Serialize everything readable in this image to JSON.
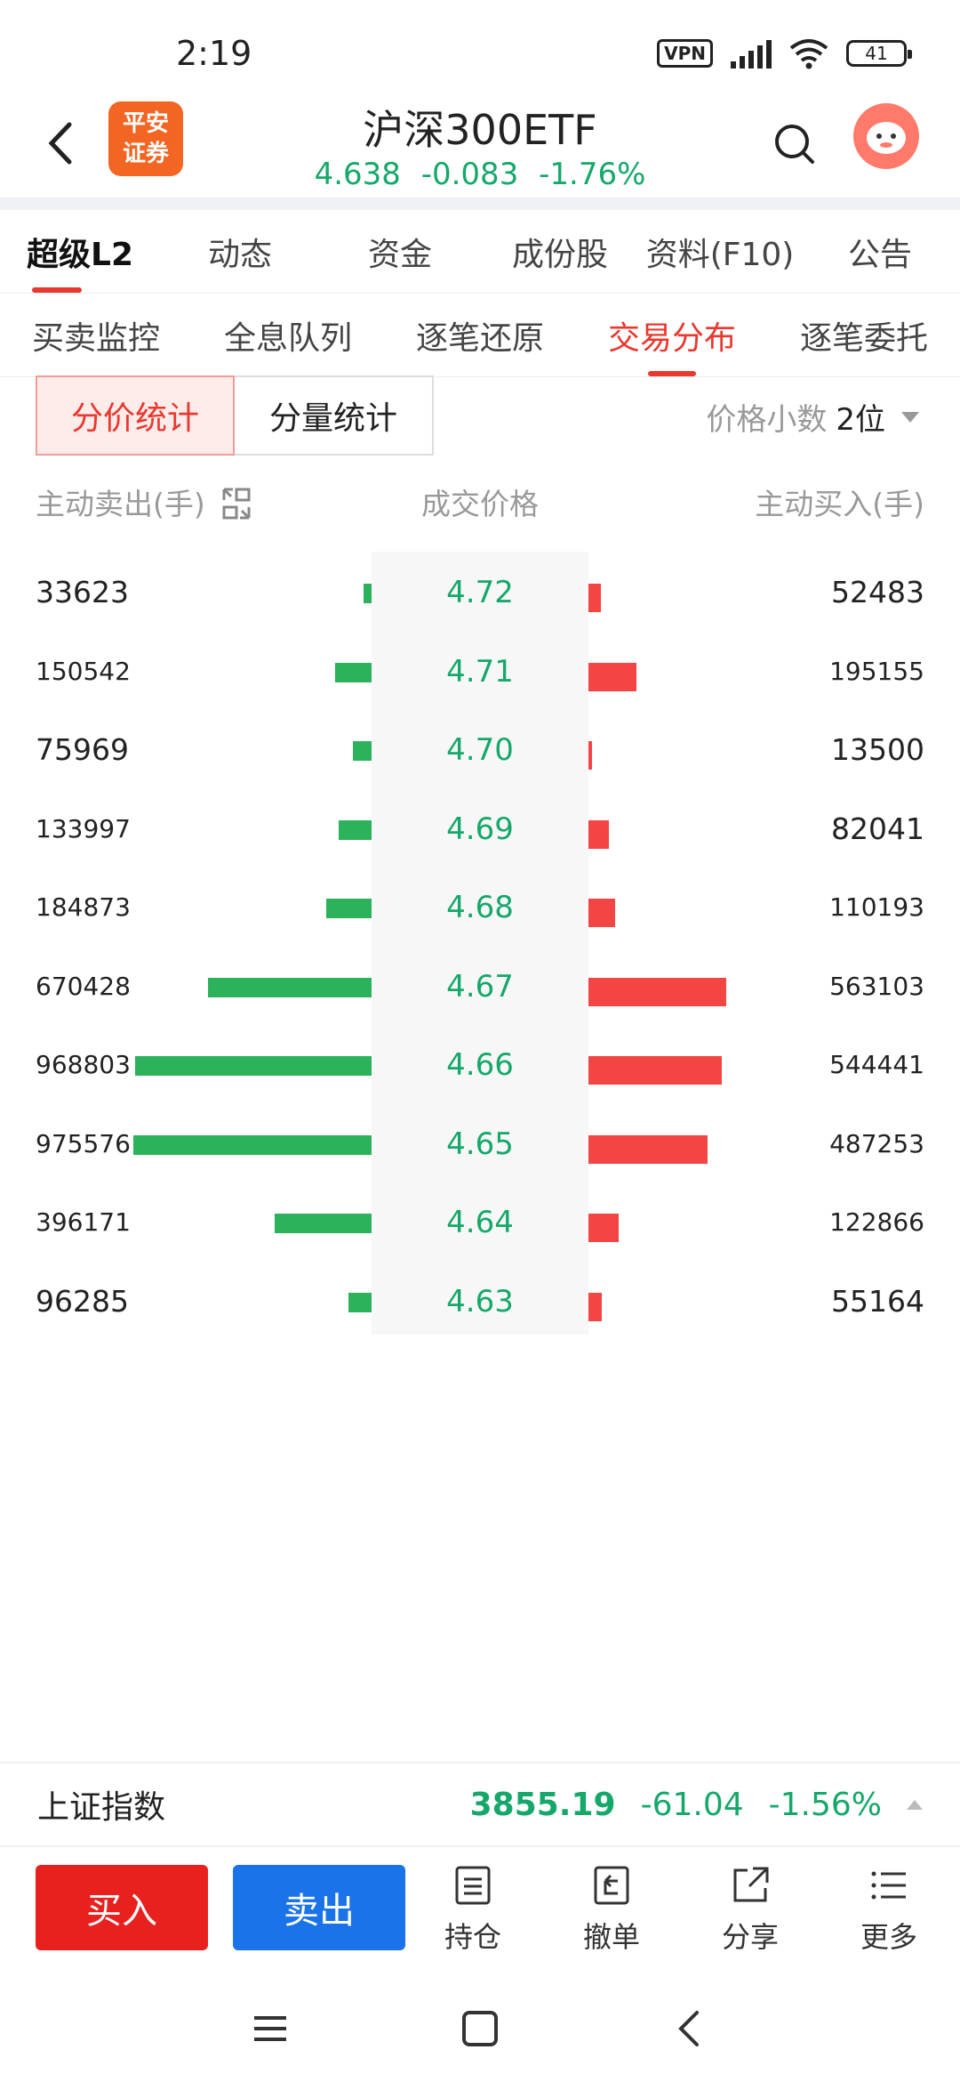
{
  "status": {
    "time": "2:19",
    "vpn": "VPN",
    "battery": "41"
  },
  "header": {
    "logo_line1": "平安",
    "logo_line2": "证券",
    "title": "沪深300ETF",
    "price": "4.638",
    "change": "-0.083",
    "change_pct": "-1.76%"
  },
  "main_tabs": [
    "超级L2",
    "动态",
    "资金",
    "成份股",
    "资料(F10)",
    "公告"
  ],
  "sub_tabs": [
    "买卖监控",
    "全息队列",
    "逐笔还原",
    "交易分布",
    "逐笔委托"
  ],
  "toggle": {
    "price_stat": "分价统计",
    "volume_stat": "分量统计"
  },
  "decimal": {
    "label": "价格小数",
    "value": "2位"
  },
  "columns": {
    "sell": "主动卖出(手)",
    "price": "成交价格",
    "buy": "主动买入(手)"
  },
  "rows": [
    {
      "sell": "33623",
      "price": "4.72",
      "buy": "52483"
    },
    {
      "sell": "150542",
      "price": "4.71",
      "buy": "195155"
    },
    {
      "sell": "75969",
      "price": "4.70",
      "buy": "13500"
    },
    {
      "sell": "133997",
      "price": "4.69",
      "buy": "82041"
    },
    {
      "sell": "184873",
      "price": "4.68",
      "buy": "110193"
    },
    {
      "sell": "670428",
      "price": "4.67",
      "buy": "563103"
    },
    {
      "sell": "968803",
      "price": "4.66",
      "buy": "544441"
    },
    {
      "sell": "975576",
      "price": "4.65",
      "buy": "487253"
    },
    {
      "sell": "396171",
      "price": "4.64",
      "buy": "122866"
    },
    {
      "sell": "96285",
      "price": "4.63",
      "buy": "55164"
    }
  ],
  "index": {
    "name": "上证指数",
    "point": "3855.19",
    "change": "-61.04",
    "change_pct": "-1.56%"
  },
  "actions": {
    "buy": "买入",
    "sell": "卖出",
    "hold": "持仓",
    "cancel": "撤单",
    "share": "分享",
    "more": "更多"
  },
  "colors": {
    "up": "#f44545",
    "down": "#2db25c",
    "accent": "#e8382f",
    "quote": "#16a86a",
    "buy_btn": "#e8201e",
    "sell_btn": "#1a73e8"
  }
}
